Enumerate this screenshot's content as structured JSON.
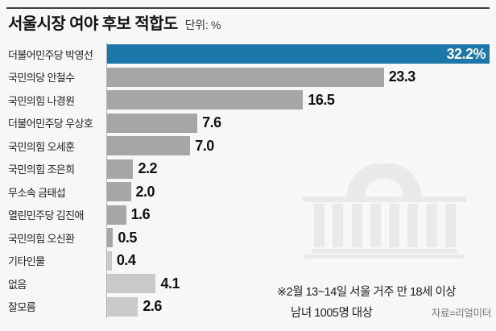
{
  "header": {
    "title": "서울시장 여야 후보 적합도",
    "unit_label": "단위: %"
  },
  "chart_data": {
    "type": "bar",
    "orientation": "horizontal",
    "title": "서울시장 여야 후보 적합도",
    "unit": "%",
    "xlim": [
      0,
      32.2
    ],
    "grid": false,
    "legend": "none",
    "categories": [
      "더불어민주당 박영선",
      "국민의당 안철수",
      "국민의힘 나경원",
      "더불어민주당 우상호",
      "국민의힘 오세훈",
      "국민의힘 조은희",
      "무소속 금태섭",
      "열린민주당 김진애",
      "국민의힘 오신환",
      "기타인물",
      "없음",
      "잘모름"
    ],
    "values": [
      32.2,
      23.3,
      16.5,
      7.6,
      7.0,
      2.2,
      2.0,
      1.6,
      0.5,
      0.4,
      4.1,
      2.6
    ],
    "max_value": 32.2,
    "rows": [
      {
        "label": "더불어민주당 박영선",
        "value": 32.2,
        "display": "32.2%",
        "emphasis": "highlight",
        "value_inside": true
      },
      {
        "label": "국민의당 안철수",
        "value": 23.3,
        "display": "23.3",
        "emphasis": "normal",
        "value_inside": false
      },
      {
        "label": "국민의힘 나경원",
        "value": 16.5,
        "display": "16.5",
        "emphasis": "normal",
        "value_inside": false
      },
      {
        "label": "더불어민주당 우상호",
        "value": 7.6,
        "display": "7.6",
        "emphasis": "normal",
        "value_inside": false
      },
      {
        "label": "국민의힘 오세훈",
        "value": 7.0,
        "display": "7.0",
        "emphasis": "normal",
        "value_inside": false
      },
      {
        "label": "국민의힘 조은희",
        "value": 2.2,
        "display": "2.2",
        "emphasis": "normal",
        "value_inside": false
      },
      {
        "label": "무소속 금태섭",
        "value": 2.0,
        "display": "2.0",
        "emphasis": "normal",
        "value_inside": false
      },
      {
        "label": "열린민주당 김진애",
        "value": 1.6,
        "display": "1.6",
        "emphasis": "normal",
        "value_inside": false
      },
      {
        "label": "국민의힘 오신환",
        "value": 0.5,
        "display": "0.5",
        "emphasis": "normal",
        "value_inside": false
      },
      {
        "label": "기타인물",
        "value": 0.4,
        "display": "0.4",
        "emphasis": "muted",
        "value_inside": false
      },
      {
        "label": "없음",
        "value": 4.1,
        "display": "4.1",
        "emphasis": "muted",
        "value_inside": false
      },
      {
        "label": "잘모름",
        "value": 2.6,
        "display": "2.6",
        "emphasis": "muted",
        "value_inside": false
      }
    ],
    "colors": {
      "highlight": "#1b76aa",
      "normal": "#a6a6a6",
      "muted": "#c9c9c9"
    }
  },
  "footnote": {
    "line1": "※2월 13~14일 서울 거주 만 18세 이상",
    "line2": "남녀 1005명 대상",
    "source": "자료=리얼미터"
  },
  "watermark": {
    "icon": "national-assembly-building"
  }
}
